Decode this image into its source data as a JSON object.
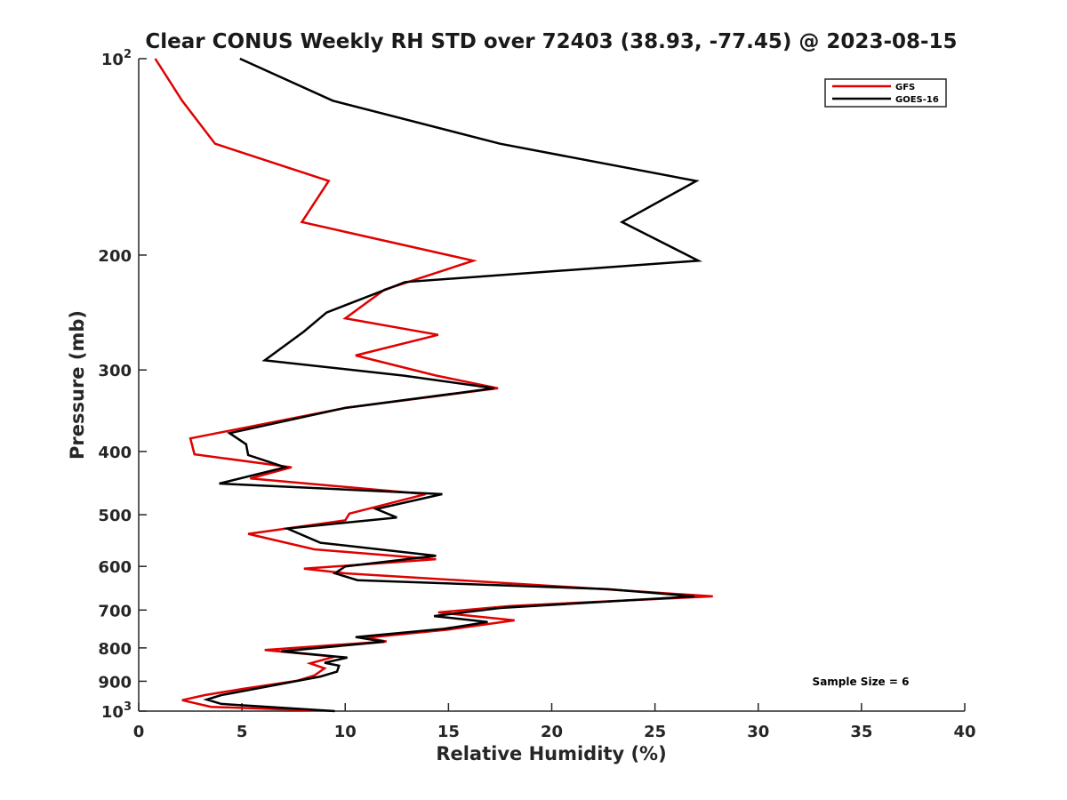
{
  "chart_data": {
    "type": "line",
    "title": "Clear CONUS Weekly RH STD over 72403 (38.93, -77.45) @ 2023-08-15",
    "xlabel": "Relative Humidity (%)",
    "ylabel": "Pressure (mb)",
    "xlim": [
      0,
      40
    ],
    "ylim": [
      100,
      1000
    ],
    "y_scale": "log",
    "y_reversed": true,
    "grid": false,
    "legend_position": "top-right",
    "xticks": [
      "0",
      "5",
      "10",
      "15",
      "20",
      "25",
      "30",
      "35",
      "40"
    ],
    "yticks": [
      {
        "value": 100,
        "base": "10",
        "exp": "2"
      },
      {
        "value": 200,
        "label": "200"
      },
      {
        "value": 300,
        "label": "300"
      },
      {
        "value": 400,
        "label": "400"
      },
      {
        "value": 500,
        "label": "500"
      },
      {
        "value": 600,
        "label": "600"
      },
      {
        "value": 700,
        "label": "700"
      },
      {
        "value": 800,
        "label": "800"
      },
      {
        "value": 900,
        "label": "900"
      },
      {
        "value": 1000,
        "base": "10",
        "exp": "3"
      }
    ],
    "annotation": "Sample Size = 6",
    "series": [
      {
        "name": "GFS",
        "color": "#e00000",
        "points": [
          [
            0.8,
            100
          ],
          [
            2.1,
            116
          ],
          [
            3.7,
            135
          ],
          [
            9.2,
            154
          ],
          [
            7.9,
            178
          ],
          [
            16.2,
            204
          ],
          [
            11.9,
            226
          ],
          [
            10.0,
            250
          ],
          [
            14.5,
            265
          ],
          [
            10.5,
            285
          ],
          [
            14.4,
            306
          ],
          [
            17.4,
            320
          ],
          [
            10.0,
            343
          ],
          [
            2.5,
            382
          ],
          [
            2.7,
            404
          ],
          [
            7.4,
            423
          ],
          [
            5.4,
            440
          ],
          [
            13.9,
            465
          ],
          [
            10.2,
            498
          ],
          [
            10.0,
            510
          ],
          [
            5.3,
            535
          ],
          [
            8.5,
            565
          ],
          [
            14.4,
            585
          ],
          [
            8.0,
            605
          ],
          [
            10.0,
            615
          ],
          [
            22.5,
            650
          ],
          [
            27.8,
            667
          ],
          [
            18.0,
            690
          ],
          [
            14.5,
            706
          ],
          [
            18.2,
            726
          ],
          [
            15.0,
            750
          ],
          [
            11.0,
            772
          ],
          [
            12.0,
            782
          ],
          [
            6.1,
            806
          ],
          [
            9.5,
            825
          ],
          [
            8.3,
            845
          ],
          [
            9.0,
            860
          ],
          [
            8.5,
            882
          ],
          [
            7.7,
            898
          ],
          [
            5.0,
            925
          ],
          [
            3.2,
            945
          ],
          [
            2.1,
            962
          ],
          [
            3.5,
            985
          ],
          [
            8.7,
            998
          ]
        ]
      },
      {
        "name": "GOES-16",
        "color": "#000000",
        "points": [
          [
            4.9,
            100
          ],
          [
            9.4,
            116
          ],
          [
            17.5,
            135
          ],
          [
            27.0,
            154
          ],
          [
            23.4,
            178
          ],
          [
            27.1,
            204
          ],
          [
            12.9,
            220
          ],
          [
            9.1,
            245
          ],
          [
            8.0,
            262
          ],
          [
            6.1,
            290
          ],
          [
            12.8,
            306
          ],
          [
            17.2,
            320
          ],
          [
            10.0,
            343
          ],
          [
            4.4,
            375
          ],
          [
            5.2,
            390
          ],
          [
            5.3,
            405
          ],
          [
            7.1,
            423
          ],
          [
            3.9,
            448
          ],
          [
            14.7,
            465
          ],
          [
            11.5,
            490
          ],
          [
            12.5,
            505
          ],
          [
            7.2,
            525
          ],
          [
            8.8,
            552
          ],
          [
            14.4,
            578
          ],
          [
            10.0,
            600
          ],
          [
            9.5,
            615
          ],
          [
            10.6,
            630
          ],
          [
            22.7,
            650
          ],
          [
            26.9,
            667
          ],
          [
            17.5,
            695
          ],
          [
            14.3,
            715
          ],
          [
            16.9,
            730
          ],
          [
            14.8,
            748
          ],
          [
            10.5,
            770
          ],
          [
            11.9,
            783
          ],
          [
            6.9,
            810
          ],
          [
            10.1,
            828
          ],
          [
            9.0,
            843
          ],
          [
            9.7,
            852
          ],
          [
            9.6,
            870
          ],
          [
            8.8,
            885
          ],
          [
            4.0,
            945
          ],
          [
            3.3,
            960
          ],
          [
            4.0,
            975
          ],
          [
            9.5,
            1000
          ]
        ]
      }
    ]
  }
}
